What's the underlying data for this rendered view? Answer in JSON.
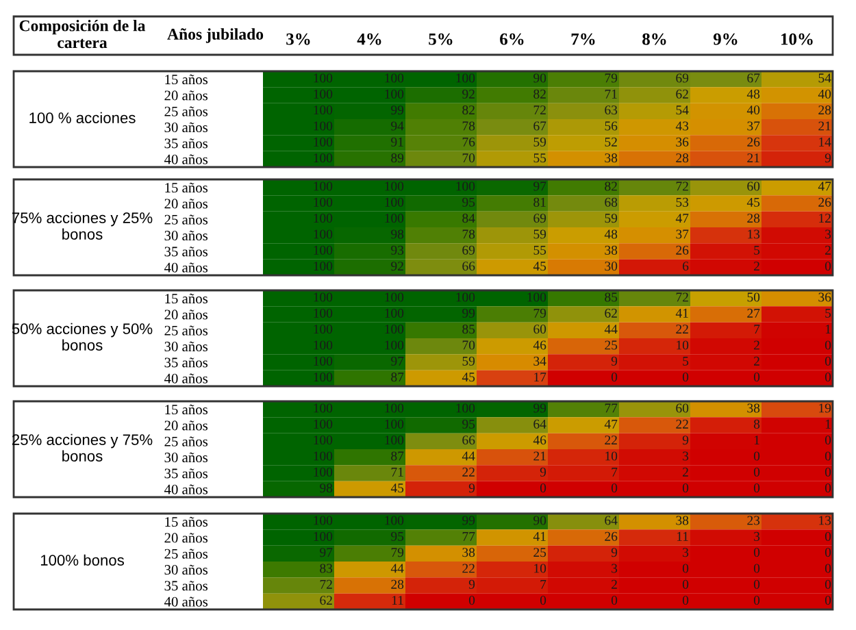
{
  "chart_data": [
    {
      "type": "heatmap",
      "ylabel": "100 % acciones",
      "annotations": [
        "Composición de la cartera",
        "Años jubilado"
      ],
      "categories": [
        "3%",
        "4%",
        "5%",
        "6%",
        "7%",
        "8%",
        "9%",
        "10%"
      ],
      "y_categories": [
        "15 años",
        "20 años",
        "25 años",
        "30 años",
        "35 años",
        "40 años"
      ],
      "data_labels": true,
      "cells": [
        [
          100,
          100,
          100,
          90,
          79,
          69,
          67,
          54
        ],
        [
          100,
          100,
          92,
          82,
          71,
          62,
          48,
          40
        ],
        [
          100,
          99,
          82,
          72,
          63,
          54,
          40,
          28
        ],
        [
          100,
          94,
          78,
          67,
          56,
          43,
          37,
          21
        ],
        [
          100,
          91,
          76,
          59,
          52,
          36,
          26,
          14
        ],
        [
          100,
          89,
          70,
          55,
          38,
          28,
          21,
          9
        ]
      ]
    },
    {
      "type": "heatmap",
      "ylabel": "75% acciones y 25% bonos",
      "categories": [
        null,
        null,
        null,
        null,
        null,
        null,
        null,
        null
      ],
      "y_categories": [
        "15 años",
        "20 años",
        "25 años",
        "30 años",
        "35 años",
        "40 años"
      ],
      "data_labels": true,
      "tick_labels": "y",
      "cells": [
        [
          100,
          100,
          100,
          97,
          82,
          72,
          60,
          47
        ],
        [
          100,
          100,
          95,
          81,
          68,
          53,
          45,
          26
        ],
        [
          100,
          100,
          84,
          69,
          59,
          47,
          28,
          12
        ],
        [
          100,
          98,
          78,
          59,
          48,
          37,
          13,
          3
        ],
        [
          100,
          93,
          69,
          55,
          38,
          26,
          5,
          2
        ],
        [
          100,
          92,
          66,
          45,
          30,
          6,
          2,
          0
        ]
      ]
    },
    {
      "type": "heatmap",
      "ylabel": "50% acciones y 50% bonos",
      "categories": [
        null,
        null,
        null,
        null,
        null,
        null,
        null,
        null
      ],
      "y_categories": [
        "15 años",
        "20 años",
        "25 años",
        "30 años",
        "35 años",
        "40 años"
      ],
      "data_labels": true,
      "tick_labels": "y",
      "cells": [
        [
          100,
          100,
          100,
          100,
          85,
          72,
          50,
          36
        ],
        [
          100,
          100,
          99,
          79,
          62,
          41,
          27,
          5
        ],
        [
          100,
          100,
          85,
          60,
          44,
          22,
          7,
          1
        ],
        [
          100,
          100,
          70,
          46,
          25,
          10,
          2,
          0
        ],
        [
          100,
          97,
          59,
          34,
          9,
          5,
          2,
          0
        ],
        [
          100,
          87,
          45,
          17,
          0,
          0,
          0,
          0
        ]
      ]
    },
    {
      "type": "heatmap",
      "ylabel": "25% acciones y 75% bonos",
      "categories": [
        null,
        null,
        null,
        null,
        null,
        null,
        null,
        null
      ],
      "y_categories": [
        "15 años",
        "20 años",
        "25 años",
        "30 años",
        "35 años",
        "40 años"
      ],
      "data_labels": true,
      "tick_labels": "y",
      "cells": [
        [
          100,
          100,
          100,
          99,
          77,
          60,
          38,
          19
        ],
        [
          100,
          100,
          95,
          64,
          47,
          22,
          8,
          1
        ],
        [
          100,
          100,
          66,
          46,
          22,
          9,
          1,
          0
        ],
        [
          100,
          87,
          44,
          21,
          10,
          3,
          0,
          0
        ],
        [
          100,
          71,
          22,
          9,
          7,
          2,
          0,
          0
        ],
        [
          98,
          45,
          9,
          0,
          0,
          0,
          0,
          0
        ]
      ]
    },
    {
      "type": "heatmap",
      "ylabel": "100% bonos",
      "categories": [
        null,
        null,
        null,
        null,
        null,
        null,
        null,
        null
      ],
      "y_categories": [
        "15 años",
        "20 años",
        "25 años",
        "30 años",
        "35 años",
        "40 años"
      ],
      "data_labels": true,
      "tick_labels": "y",
      "cells": [
        [
          100,
          100,
          99,
          90,
          64,
          38,
          23,
          13
        ],
        [
          100,
          95,
          77,
          41,
          26,
          11,
          3,
          0
        ],
        [
          97,
          79,
          38,
          25,
          9,
          3,
          0,
          0
        ],
        [
          83,
          44,
          22,
          10,
          3,
          0,
          0,
          0
        ],
        [
          72,
          28,
          9,
          7,
          2,
          0,
          0,
          0
        ],
        [
          62,
          11,
          0,
          0,
          0,
          0,
          0,
          0
        ]
      ]
    }
  ]
}
